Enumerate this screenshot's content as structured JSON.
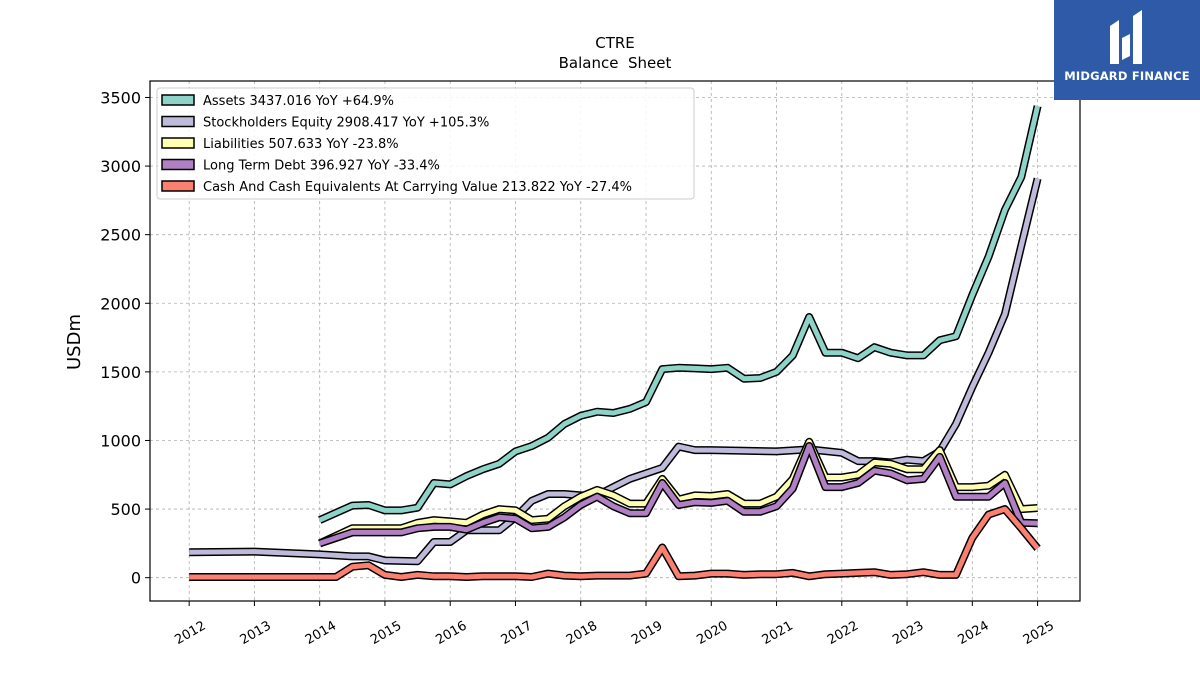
{
  "chart_data": {
    "type": "line",
    "title": "CTRE",
    "subtitle": "Balance  Sheet",
    "ylabel": "USDm",
    "xlabel": "",
    "xlim": [
      2011.4,
      2025.65
    ],
    "ylim": [
      -170,
      3620
    ],
    "yticks": [
      0,
      500,
      1000,
      1500,
      2000,
      2500,
      3000,
      3500
    ],
    "xticks": [
      2012,
      2013,
      2014,
      2015,
      2016,
      2017,
      2018,
      2019,
      2020,
      2021,
      2022,
      2023,
      2024,
      2025
    ],
    "grid": true,
    "legend_position": "top-left",
    "series": [
      {
        "name": "Assets",
        "legend": "Assets  3437.016 YoY +64.9%",
        "color": "#8dd3c7",
        "points": [
          [
            2014.0,
            420
          ],
          [
            2014.5,
            525
          ],
          [
            2014.75,
            530
          ],
          [
            2015.0,
            490
          ],
          [
            2015.25,
            490
          ],
          [
            2015.5,
            510
          ],
          [
            2015.75,
            690
          ],
          [
            2016.0,
            680
          ],
          [
            2016.25,
            740
          ],
          [
            2016.5,
            790
          ],
          [
            2016.75,
            830
          ],
          [
            2017.0,
            920
          ],
          [
            2017.25,
            960
          ],
          [
            2017.5,
            1020
          ],
          [
            2017.75,
            1120
          ],
          [
            2018.0,
            1180
          ],
          [
            2018.25,
            1210
          ],
          [
            2018.5,
            1200
          ],
          [
            2018.75,
            1230
          ],
          [
            2019.0,
            1280
          ],
          [
            2019.25,
            1520
          ],
          [
            2019.5,
            1530
          ],
          [
            2019.75,
            1525
          ],
          [
            2020.0,
            1520
          ],
          [
            2020.25,
            1530
          ],
          [
            2020.5,
            1450
          ],
          [
            2020.75,
            1455
          ],
          [
            2021.0,
            1500
          ],
          [
            2021.25,
            1620
          ],
          [
            2021.5,
            1900
          ],
          [
            2021.75,
            1640
          ],
          [
            2022.0,
            1640
          ],
          [
            2022.25,
            1600
          ],
          [
            2022.5,
            1680
          ],
          [
            2022.75,
            1640
          ],
          [
            2023.0,
            1620
          ],
          [
            2023.25,
            1620
          ],
          [
            2023.5,
            1730
          ],
          [
            2023.75,
            1760
          ],
          [
            2024.0,
            2060
          ],
          [
            2024.25,
            2340
          ],
          [
            2024.5,
            2680
          ],
          [
            2024.75,
            2920
          ],
          [
            2025.0,
            3437.016
          ]
        ]
      },
      {
        "name": "Stockholders Equity",
        "legend": "Stockholders Equity  2908.417 YoY +105.3%",
        "color": "#bebada",
        "points": [
          [
            2012.0,
            185
          ],
          [
            2013.0,
            190
          ],
          [
            2014.0,
            170
          ],
          [
            2014.5,
            155
          ],
          [
            2014.75,
            155
          ],
          [
            2015.0,
            125
          ],
          [
            2015.5,
            120
          ],
          [
            2015.75,
            260
          ],
          [
            2016.0,
            260
          ],
          [
            2016.25,
            345
          ],
          [
            2016.5,
            345
          ],
          [
            2016.75,
            345
          ],
          [
            2017.0,
            440
          ],
          [
            2017.25,
            560
          ],
          [
            2017.5,
            610
          ],
          [
            2017.75,
            610
          ],
          [
            2018.0,
            600
          ],
          [
            2018.25,
            600
          ],
          [
            2018.5,
            660
          ],
          [
            2018.75,
            720
          ],
          [
            2019.0,
            760
          ],
          [
            2019.25,
            800
          ],
          [
            2019.5,
            955
          ],
          [
            2019.75,
            930
          ],
          [
            2020.0,
            930
          ],
          [
            2020.5,
            925
          ],
          [
            2021.0,
            920
          ],
          [
            2021.5,
            935
          ],
          [
            2022.0,
            910
          ],
          [
            2022.25,
            850
          ],
          [
            2022.5,
            850
          ],
          [
            2022.75,
            840
          ],
          [
            2023.0,
            860
          ],
          [
            2023.25,
            850
          ],
          [
            2023.5,
            920
          ],
          [
            2023.75,
            1120
          ],
          [
            2024.0,
            1390
          ],
          [
            2024.25,
            1640
          ],
          [
            2024.5,
            1920
          ],
          [
            2024.75,
            2420
          ],
          [
            2025.0,
            2908.417
          ]
        ]
      },
      {
        "name": "Liabilities",
        "legend": "Liabilities  507.633 YoY -23.8%",
        "color": "#ffffb3",
        "points": [
          [
            2014.0,
            250
          ],
          [
            2014.5,
            360
          ],
          [
            2014.75,
            360
          ],
          [
            2015.0,
            360
          ],
          [
            2015.25,
            360
          ],
          [
            2015.5,
            400
          ],
          [
            2015.75,
            420
          ],
          [
            2016.0,
            410
          ],
          [
            2016.25,
            400
          ],
          [
            2016.5,
            460
          ],
          [
            2016.75,
            500
          ],
          [
            2017.0,
            490
          ],
          [
            2017.25,
            420
          ],
          [
            2017.5,
            430
          ],
          [
            2017.75,
            520
          ],
          [
            2018.0,
            590
          ],
          [
            2018.25,
            640
          ],
          [
            2018.5,
            600
          ],
          [
            2018.75,
            540
          ],
          [
            2019.0,
            540
          ],
          [
            2019.25,
            720
          ],
          [
            2019.5,
            570
          ],
          [
            2019.75,
            600
          ],
          [
            2020.0,
            595
          ],
          [
            2020.25,
            610
          ],
          [
            2020.5,
            540
          ],
          [
            2020.75,
            540
          ],
          [
            2021.0,
            590
          ],
          [
            2021.25,
            720
          ],
          [
            2021.5,
            990
          ],
          [
            2021.75,
            730
          ],
          [
            2022.0,
            730
          ],
          [
            2022.25,
            750
          ],
          [
            2022.5,
            840
          ],
          [
            2022.75,
            830
          ],
          [
            2023.0,
            790
          ],
          [
            2023.25,
            790
          ],
          [
            2023.5,
            930
          ],
          [
            2023.75,
            660
          ],
          [
            2024.0,
            660
          ],
          [
            2024.25,
            670
          ],
          [
            2024.5,
            750
          ],
          [
            2024.75,
            500
          ],
          [
            2025.0,
            507.633
          ]
        ]
      },
      {
        "name": "Long Term Debt",
        "legend": "Long Term Debt  396.927 YoY -33.4%",
        "color": "#b07fc4",
        "points": [
          [
            2014.0,
            250
          ],
          [
            2014.5,
            330
          ],
          [
            2014.75,
            330
          ],
          [
            2015.0,
            330
          ],
          [
            2015.25,
            330
          ],
          [
            2015.5,
            360
          ],
          [
            2015.75,
            370
          ],
          [
            2016.0,
            370
          ],
          [
            2016.25,
            350
          ],
          [
            2016.5,
            400
          ],
          [
            2016.75,
            440
          ],
          [
            2017.0,
            430
          ],
          [
            2017.25,
            360
          ],
          [
            2017.5,
            370
          ],
          [
            2017.75,
            440
          ],
          [
            2018.0,
            530
          ],
          [
            2018.25,
            590
          ],
          [
            2018.5,
            520
          ],
          [
            2018.75,
            470
          ],
          [
            2019.0,
            470
          ],
          [
            2019.25,
            690
          ],
          [
            2019.5,
            530
          ],
          [
            2019.75,
            550
          ],
          [
            2020.0,
            545
          ],
          [
            2020.25,
            560
          ],
          [
            2020.5,
            480
          ],
          [
            2020.75,
            480
          ],
          [
            2021.0,
            520
          ],
          [
            2021.25,
            650
          ],
          [
            2021.5,
            960
          ],
          [
            2021.75,
            660
          ],
          [
            2022.0,
            660
          ],
          [
            2022.25,
            690
          ],
          [
            2022.5,
            780
          ],
          [
            2022.75,
            760
          ],
          [
            2023.0,
            710
          ],
          [
            2023.25,
            720
          ],
          [
            2023.5,
            880
          ],
          [
            2023.75,
            590
          ],
          [
            2024.0,
            590
          ],
          [
            2024.25,
            590
          ],
          [
            2024.5,
            690
          ],
          [
            2024.75,
            400
          ],
          [
            2025.0,
            396.927
          ]
        ]
      },
      {
        "name": "Cash And Cash Equivalents At Carrying Value",
        "legend": "Cash And Cash Equivalents At Carrying Value  213.822 YoY -27.4%",
        "color": "#fb8072",
        "points": [
          [
            2012.0,
            5
          ],
          [
            2013.0,
            5
          ],
          [
            2014.0,
            5
          ],
          [
            2014.25,
            5
          ],
          [
            2014.5,
            80
          ],
          [
            2014.75,
            90
          ],
          [
            2015.0,
            20
          ],
          [
            2015.25,
            5
          ],
          [
            2015.5,
            20
          ],
          [
            2015.75,
            10
          ],
          [
            2016.0,
            10
          ],
          [
            2016.25,
            5
          ],
          [
            2016.5,
            10
          ],
          [
            2016.75,
            10
          ],
          [
            2017.0,
            10
          ],
          [
            2017.25,
            5
          ],
          [
            2017.5,
            30
          ],
          [
            2017.75,
            15
          ],
          [
            2018.0,
            10
          ],
          [
            2018.25,
            15
          ],
          [
            2018.5,
            15
          ],
          [
            2018.75,
            15
          ],
          [
            2019.0,
            30
          ],
          [
            2019.25,
            220
          ],
          [
            2019.5,
            10
          ],
          [
            2019.75,
            15
          ],
          [
            2020.0,
            30
          ],
          [
            2020.25,
            30
          ],
          [
            2020.5,
            20
          ],
          [
            2020.75,
            25
          ],
          [
            2021.0,
            25
          ],
          [
            2021.25,
            35
          ],
          [
            2021.5,
            10
          ],
          [
            2021.75,
            25
          ],
          [
            2022.0,
            30
          ],
          [
            2022.25,
            35
          ],
          [
            2022.5,
            40
          ],
          [
            2022.75,
            20
          ],
          [
            2023.0,
            25
          ],
          [
            2023.25,
            40
          ],
          [
            2023.5,
            20
          ],
          [
            2023.75,
            20
          ],
          [
            2024.0,
            290
          ],
          [
            2024.25,
            460
          ],
          [
            2024.5,
            500
          ],
          [
            2024.75,
            360
          ],
          [
            2025.0,
            213.822
          ]
        ]
      }
    ]
  },
  "logo": {
    "text": "MIDGARD FINANCE",
    "background": "#2f5aa8"
  }
}
